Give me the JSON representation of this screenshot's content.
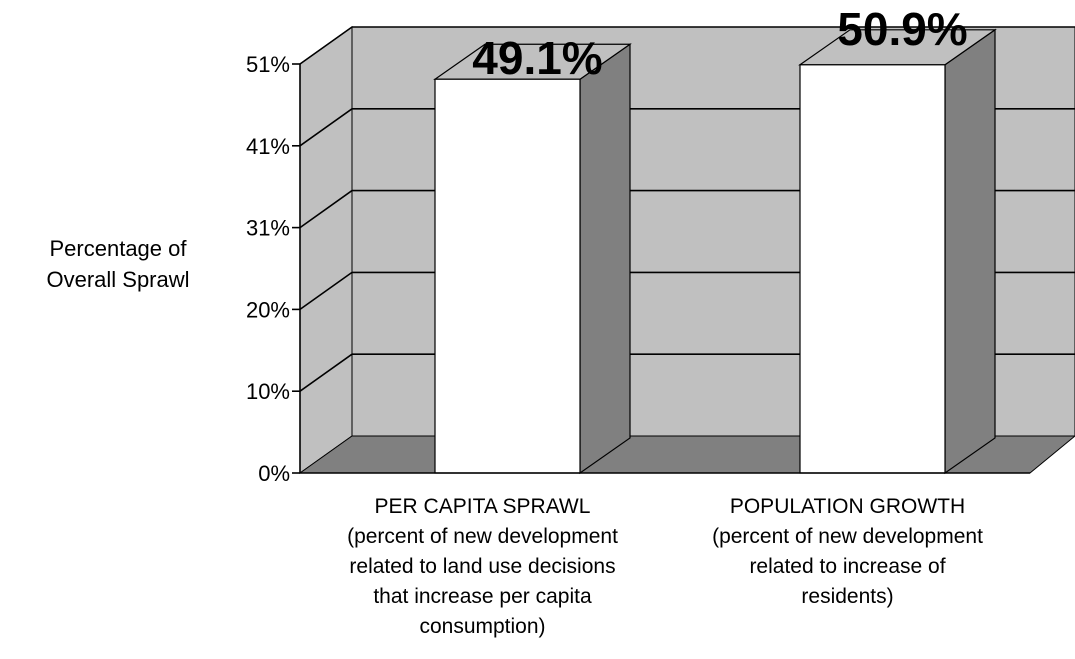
{
  "colors": {
    "back_wall": "#c0c0c0",
    "side_wall": "#c0c0c0",
    "floor": "#808080",
    "bar_front": "#ffffff",
    "bar_side": "#808080",
    "grid": "#000000"
  },
  "chart_data": {
    "type": "bar",
    "title": "",
    "ylabel": "Percentage of Overall Sprawl",
    "ylabel_lines": [
      "Percentage of",
      "Overall Sprawl"
    ],
    "xlabel": "",
    "categories": [
      "PER CAPITA SPRAWL (percent of new development related to land use decisions that increase per capita consumption)",
      "POPULATION GROWTH (percent of new development related to increase of residents)"
    ],
    "category_lines": [
      [
        "PER CAPITA SPRAWL",
        "(percent of new development",
        "related to land use decisions",
        "that increase per capita",
        "consumption)"
      ],
      [
        "POPULATION GROWTH",
        "(percent of new development",
        "related to increase of",
        "residents)"
      ]
    ],
    "values": [
      49.1,
      50.9
    ],
    "data_labels": [
      "49.1%",
      "50.9%"
    ],
    "yticks": [
      {
        "label": "0%",
        "value": 0
      },
      {
        "label": "10%",
        "value": 10.2
      },
      {
        "label": "20%",
        "value": 20.4
      },
      {
        "label": "31%",
        "value": 30.6
      },
      {
        "label": "41%",
        "value": 40.8
      },
      {
        "label": "51%",
        "value": 51
      }
    ],
    "ylim": [
      0,
      51
    ],
    "three_d": true,
    "grid": true,
    "legend": "none"
  }
}
